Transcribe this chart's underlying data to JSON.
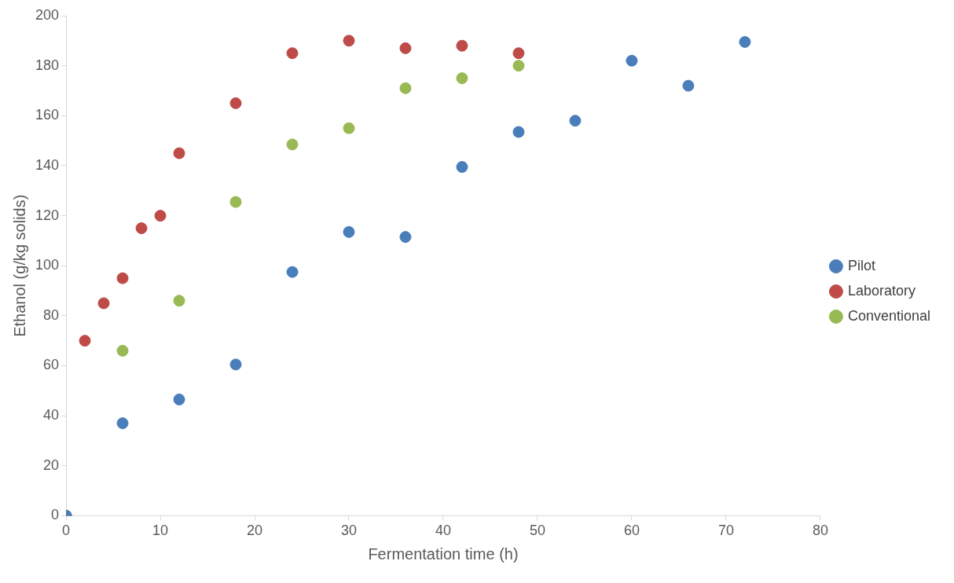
{
  "chart_data": {
    "type": "scatter",
    "xlabel": "Fermentation time (h)",
    "ylabel": "Ethanol (g/kg solids)",
    "xlim": [
      0,
      80
    ],
    "xticks": [
      0,
      10,
      20,
      30,
      40,
      50,
      60,
      70,
      80
    ],
    "ylim": [
      0,
      200
    ],
    "yticks": [
      0,
      20,
      40,
      60,
      80,
      100,
      120,
      140,
      160,
      180,
      200
    ],
    "grid": false,
    "legend": "right",
    "marker": "circle",
    "series": [
      {
        "name": "Pilot",
        "color": "#4a7ebb",
        "x": [
          0,
          6,
          12,
          18,
          24,
          30,
          36,
          42,
          48,
          54,
          60,
          66,
          72
        ],
        "values": [
          0,
          37,
          46.5,
          60.5,
          97.5,
          113.5,
          111.5,
          139.5,
          153.5,
          158,
          182,
          172,
          189.5
        ]
      },
      {
        "name": "Laboratory",
        "color": "#be4b48",
        "x": [
          0,
          2,
          4,
          6,
          8,
          10,
          12,
          18,
          24,
          30,
          36,
          42,
          48
        ],
        "values": [
          0,
          70,
          85,
          95,
          115,
          120,
          145,
          165,
          185,
          190,
          187,
          188,
          185
        ]
      },
      {
        "name": "Conventional",
        "color": "#98b954",
        "x": [
          0,
          6,
          12,
          18,
          24,
          30,
          36,
          42,
          48
        ],
        "values": [
          0,
          66,
          86,
          125.5,
          148.5,
          155,
          171,
          175,
          180
        ]
      }
    ]
  }
}
